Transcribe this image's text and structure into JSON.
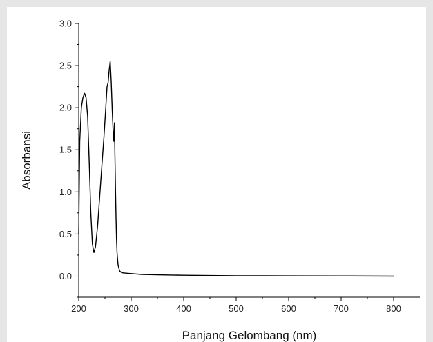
{
  "chart_data": {
    "type": "line",
    "title": "",
    "xlabel": "Panjang Gelombang (nm)",
    "ylabel": "Absorbansi",
    "xlim": [
      200,
      850
    ],
    "ylim": [
      -0.25,
      3.0
    ],
    "xticks": [
      200,
      300,
      400,
      500,
      600,
      700,
      800
    ],
    "yticks": [
      0.0,
      0.5,
      1.0,
      1.5,
      2.0,
      2.5,
      3.0
    ],
    "xtick_labels": [
      "200",
      "300",
      "400",
      "500",
      "600",
      "700",
      "800"
    ],
    "ytick_labels": [
      "0.0",
      "0.5",
      "1.0",
      "1.5",
      "2.0",
      "2.5",
      "3.0"
    ],
    "grid": false,
    "legend": "none",
    "line_color": "#000000",
    "series": [
      {
        "x": [
          200,
          202,
          205,
          208,
          211,
          214,
          217,
          220,
          223,
          226,
          229,
          232,
          236,
          240,
          244,
          248,
          251,
          254,
          256,
          258,
          260,
          262,
          264,
          266,
          267,
          268,
          269,
          270,
          271,
          272,
          273,
          275,
          278,
          282,
          290,
          300,
          320,
          350,
          400,
          500,
          600,
          700,
          800
        ],
        "y": [
          0.5,
          1.6,
          2.0,
          2.12,
          2.17,
          2.12,
          1.9,
          1.35,
          0.75,
          0.38,
          0.28,
          0.35,
          0.6,
          0.95,
          1.3,
          1.65,
          1.95,
          2.25,
          2.3,
          2.45,
          2.55,
          2.3,
          1.95,
          1.65,
          1.6,
          1.82,
          1.45,
          1.05,
          0.7,
          0.45,
          0.28,
          0.13,
          0.06,
          0.04,
          0.035,
          0.03,
          0.02,
          0.015,
          0.01,
          0.005,
          0.003,
          0.002,
          0.0
        ]
      }
    ]
  }
}
